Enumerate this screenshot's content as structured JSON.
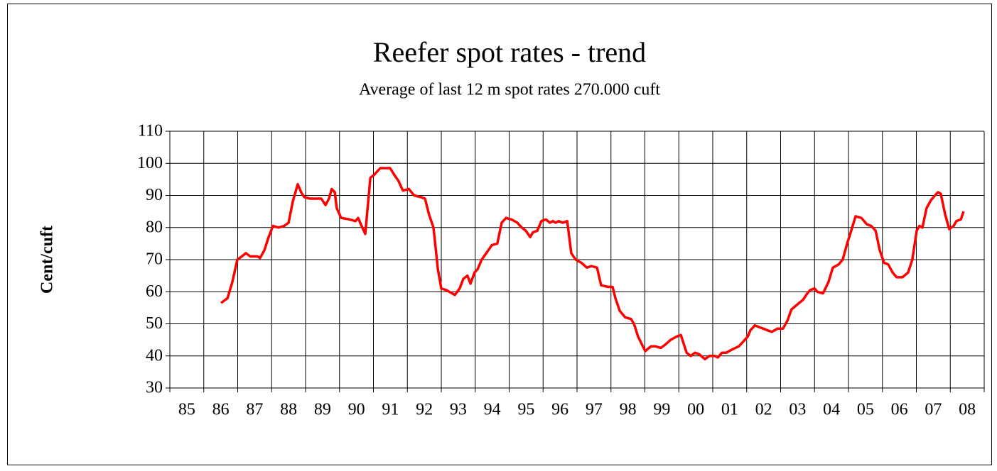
{
  "chart_data": {
    "type": "line",
    "title": "Reefer spot rates - trend",
    "subtitle": "Average of last 12 m spot rates 270.000 cuft",
    "ylabel": "Cent/cuft",
    "categories": [
      "85",
      "86",
      "87",
      "88",
      "89",
      "90",
      "91",
      "92",
      "93",
      "94",
      "95",
      "96",
      "97",
      "98",
      "99",
      "00",
      "01",
      "02",
      "03",
      "04",
      "05",
      "06",
      "07",
      "08"
    ],
    "xlim": [
      1985,
      2009
    ],
    "ylim": [
      30,
      110
    ],
    "yticks": [
      30,
      40,
      50,
      60,
      70,
      80,
      90,
      100,
      110
    ],
    "grid": true,
    "series": [
      {
        "name": "Cent/cuft",
        "color": "#ff0000",
        "x": [
          1986.51,
          1986.7,
          1986.84,
          1986.99,
          1987.12,
          1987.24,
          1987.37,
          1987.58,
          1987.66,
          1987.79,
          1987.91,
          1988.04,
          1988.2,
          1988.37,
          1988.5,
          1988.62,
          1988.77,
          1988.87,
          1988.96,
          1989.13,
          1989.46,
          1989.59,
          1989.69,
          1989.77,
          1989.86,
          1989.92,
          1990.05,
          1990.3,
          1990.47,
          1990.55,
          1990.63,
          1990.76,
          1990.91,
          1991.03,
          1991.2,
          1991.49,
          1991.64,
          1991.74,
          1991.87,
          1992.04,
          1992.2,
          1992.39,
          1992.52,
          1992.64,
          1992.77,
          1992.9,
          1993.0,
          1993.15,
          1993.4,
          1993.54,
          1993.65,
          1993.77,
          1993.86,
          1993.98,
          1994.07,
          1994.19,
          1994.36,
          1994.49,
          1994.65,
          1994.78,
          1994.91,
          1995.07,
          1995.24,
          1995.37,
          1995.49,
          1995.62,
          1995.7,
          1995.83,
          1995.95,
          1996.08,
          1996.2,
          1996.29,
          1996.37,
          1996.46,
          1996.58,
          1996.71,
          1996.83,
          1996.96,
          1997.13,
          1997.29,
          1997.42,
          1997.59,
          1997.71,
          1997.92,
          1998.05,
          1998.13,
          1998.26,
          1998.42,
          1998.59,
          1998.68,
          1998.8,
          1999.01,
          1999.18,
          1999.3,
          1999.47,
          1999.6,
          1999.76,
          1999.93,
          2000.06,
          2000.23,
          2000.35,
          2000.48,
          2000.6,
          2000.77,
          2000.9,
          2001.06,
          2001.15,
          2001.27,
          2001.4,
          2001.57,
          2001.77,
          2001.9,
          2002.03,
          2002.11,
          2002.24,
          2002.36,
          2002.49,
          2002.61,
          2002.74,
          2002.91,
          2003.07,
          2003.2,
          2003.32,
          2003.49,
          2003.66,
          2003.79,
          2003.87,
          2004.0,
          2004.08,
          2004.25,
          2004.41,
          2004.54,
          2004.71,
          2004.83,
          2004.96,
          2005.08,
          2005.21,
          2005.38,
          2005.54,
          2005.67,
          2005.8,
          2005.92,
          2006.05,
          2006.17,
          2006.3,
          2006.42,
          2006.59,
          2006.76,
          2006.88,
          2007.01,
          2007.09,
          2007.18,
          2007.3,
          2007.43,
          2007.55,
          2007.64,
          2007.72,
          2007.85,
          2007.97,
          2008.1,
          2008.18,
          2008.31,
          2008.39
        ],
        "values": [
          56.5,
          58,
          63,
          70,
          71,
          72,
          71,
          71,
          70.5,
          73,
          77,
          80.5,
          80,
          80.5,
          81.5,
          88,
          93.5,
          91,
          89.5,
          89,
          89,
          87,
          89,
          92,
          91,
          86,
          83,
          82.5,
          82,
          83,
          81,
          78,
          95.5,
          96.5,
          98.5,
          98.5,
          96,
          94.5,
          91.5,
          92,
          90,
          89.5,
          89,
          84,
          80,
          67,
          61,
          60.5,
          59,
          61,
          64,
          65,
          62.5,
          66,
          67,
          70,
          72.5,
          74.5,
          75,
          81.5,
          83,
          82.5,
          81.5,
          80,
          79,
          77,
          78.5,
          79,
          82,
          82.5,
          81.5,
          82,
          81.5,
          82,
          81.5,
          82,
          72,
          70,
          69,
          67.5,
          68,
          67.5,
          62,
          61.5,
          61.5,
          58,
          54,
          52,
          51.5,
          50,
          46,
          41.5,
          43,
          43,
          42.5,
          43.5,
          45,
          46,
          46.5,
          41,
          40,
          41,
          40.5,
          39,
          40,
          40,
          39.5,
          41,
          41,
          42,
          43,
          44.5,
          46,
          48,
          49.5,
          49,
          48.5,
          48,
          47.5,
          48.5,
          48.5,
          51,
          54.5,
          56,
          57.5,
          59.5,
          60.5,
          61,
          60,
          59.5,
          63,
          67.5,
          68.5,
          70,
          75,
          79,
          83.5,
          83,
          81,
          80.5,
          79,
          73,
          69,
          68.5,
          66,
          64.5,
          64.5,
          66,
          70,
          79,
          80.5,
          80,
          86,
          88.5,
          90,
          91,
          90.5,
          84,
          79.5,
          80.5,
          82,
          82.5,
          85
        ]
      }
    ]
  }
}
